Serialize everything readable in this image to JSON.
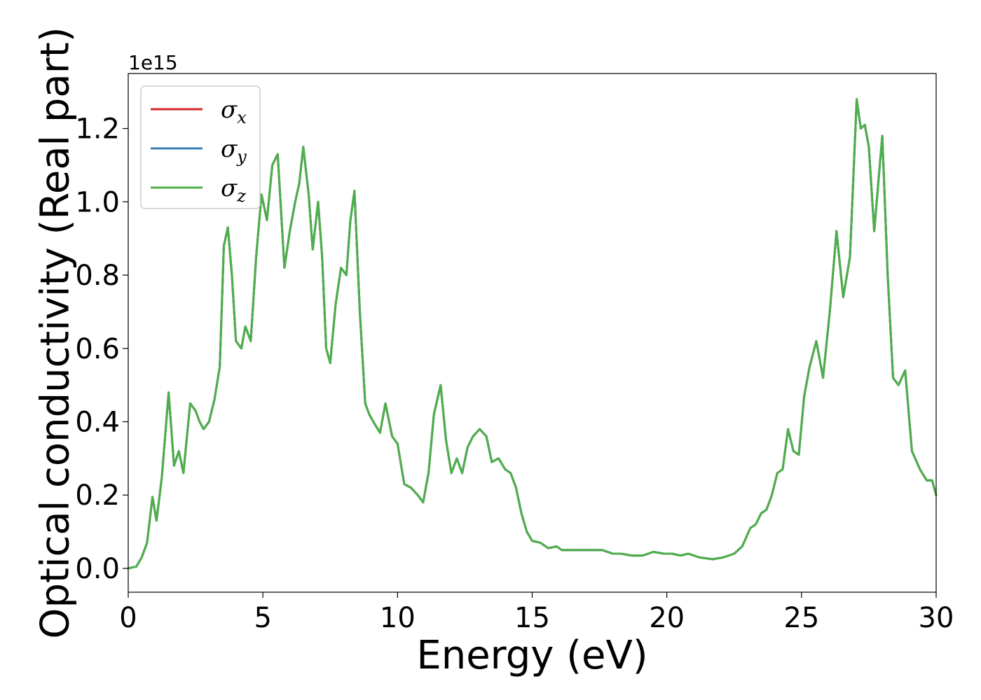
{
  "chart_data": {
    "type": "line",
    "xlabel": "Energy (eV)",
    "ylabel": "Optical conductivity (Real part)",
    "y_offset_label": "1e15",
    "xlim": [
      0,
      30
    ],
    "ylim": [
      -0.065,
      1.35
    ],
    "xticks": [
      0,
      5,
      10,
      15,
      20,
      25,
      30
    ],
    "xtick_labels": [
      "0",
      "5",
      "10",
      "15",
      "20",
      "25",
      "30"
    ],
    "yticks": [
      0.0,
      0.2,
      0.4,
      0.6,
      0.8,
      1.0,
      1.2
    ],
    "ytick_labels": [
      "0.0",
      "0.2",
      "0.4",
      "0.6",
      "0.8",
      "1.0",
      "1.2"
    ],
    "grid": false,
    "legend_position": "top-left",
    "x": [
      0.0,
      0.3,
      0.5,
      0.7,
      0.9,
      1.05,
      1.25,
      1.5,
      1.7,
      1.88,
      2.05,
      2.3,
      2.5,
      2.65,
      2.8,
      3.0,
      3.2,
      3.4,
      3.55,
      3.7,
      3.85,
      4.0,
      4.2,
      4.35,
      4.55,
      4.75,
      4.95,
      5.15,
      5.35,
      5.55,
      5.8,
      6.0,
      6.2,
      6.35,
      6.5,
      6.7,
      6.85,
      7.05,
      7.2,
      7.35,
      7.5,
      7.7,
      7.9,
      8.1,
      8.25,
      8.4,
      8.6,
      8.8,
      8.95,
      9.1,
      9.35,
      9.55,
      9.8,
      10.0,
      10.25,
      10.5,
      10.75,
      10.95,
      11.15,
      11.35,
      11.6,
      11.8,
      12.0,
      12.2,
      12.4,
      12.6,
      12.8,
      13.05,
      13.3,
      13.5,
      13.75,
      14.0,
      14.2,
      14.4,
      14.6,
      14.8,
      15.0,
      15.3,
      15.6,
      15.9,
      16.1,
      16.4,
      16.8,
      17.2,
      17.6,
      18.0,
      18.3,
      18.7,
      19.1,
      19.5,
      19.9,
      20.2,
      20.5,
      20.8,
      21.2,
      21.7,
      22.1,
      22.5,
      22.8,
      23.1,
      23.3,
      23.5,
      23.7,
      23.9,
      24.1,
      24.3,
      24.5,
      24.7,
      24.9,
      25.1,
      25.3,
      25.55,
      25.8,
      26.05,
      26.3,
      26.55,
      26.8,
      27.05,
      27.2,
      27.35,
      27.5,
      27.7,
      27.85,
      28.0,
      28.2,
      28.4,
      28.6,
      28.85,
      29.1,
      29.4,
      29.65,
      29.85,
      30.0
    ],
    "series": [
      {
        "name": "σx",
        "color": "#d62728",
        "values": [
          0.0,
          0.005,
          0.03,
          0.07,
          0.195,
          0.13,
          0.25,
          0.48,
          0.28,
          0.32,
          0.26,
          0.45,
          0.43,
          0.4,
          0.38,
          0.4,
          0.46,
          0.55,
          0.88,
          0.93,
          0.8,
          0.62,
          0.6,
          0.66,
          0.62,
          0.85,
          1.02,
          0.95,
          1.1,
          1.13,
          0.82,
          0.92,
          1.0,
          1.05,
          1.15,
          1.02,
          0.87,
          1.0,
          0.85,
          0.6,
          0.56,
          0.72,
          0.82,
          0.8,
          0.95,
          1.03,
          0.7,
          0.45,
          0.42,
          0.4,
          0.37,
          0.45,
          0.36,
          0.34,
          0.23,
          0.22,
          0.2,
          0.18,
          0.26,
          0.42,
          0.5,
          0.35,
          0.26,
          0.3,
          0.26,
          0.33,
          0.36,
          0.38,
          0.36,
          0.29,
          0.3,
          0.27,
          0.26,
          0.22,
          0.15,
          0.1,
          0.075,
          0.07,
          0.055,
          0.06,
          0.05,
          0.05,
          0.05,
          0.05,
          0.05,
          0.04,
          0.04,
          0.035,
          0.035,
          0.045,
          0.04,
          0.04,
          0.035,
          0.04,
          0.03,
          0.025,
          0.03,
          0.04,
          0.06,
          0.11,
          0.12,
          0.15,
          0.16,
          0.2,
          0.26,
          0.27,
          0.38,
          0.32,
          0.31,
          0.47,
          0.55,
          0.62,
          0.52,
          0.7,
          0.92,
          0.74,
          0.85,
          1.28,
          1.2,
          1.21,
          1.15,
          0.92,
          1.05,
          1.18,
          0.8,
          0.52,
          0.5,
          0.54,
          0.32,
          0.27,
          0.24,
          0.24,
          0.2
        ]
      },
      {
        "name": "σy",
        "color": "#377eb8",
        "values": [
          0.0,
          0.005,
          0.03,
          0.07,
          0.195,
          0.13,
          0.25,
          0.48,
          0.28,
          0.32,
          0.26,
          0.45,
          0.43,
          0.4,
          0.38,
          0.4,
          0.46,
          0.55,
          0.88,
          0.93,
          0.8,
          0.62,
          0.6,
          0.66,
          0.62,
          0.85,
          1.02,
          0.95,
          1.1,
          1.13,
          0.82,
          0.92,
          1.0,
          1.05,
          1.15,
          1.02,
          0.87,
          1.0,
          0.85,
          0.6,
          0.56,
          0.72,
          0.82,
          0.8,
          0.95,
          1.03,
          0.7,
          0.45,
          0.42,
          0.4,
          0.37,
          0.45,
          0.36,
          0.34,
          0.23,
          0.22,
          0.2,
          0.18,
          0.26,
          0.42,
          0.5,
          0.35,
          0.26,
          0.3,
          0.26,
          0.33,
          0.36,
          0.38,
          0.36,
          0.29,
          0.3,
          0.27,
          0.26,
          0.22,
          0.15,
          0.1,
          0.075,
          0.07,
          0.055,
          0.06,
          0.05,
          0.05,
          0.05,
          0.05,
          0.05,
          0.04,
          0.04,
          0.035,
          0.035,
          0.045,
          0.04,
          0.04,
          0.035,
          0.04,
          0.03,
          0.025,
          0.03,
          0.04,
          0.06,
          0.11,
          0.12,
          0.15,
          0.16,
          0.2,
          0.26,
          0.27,
          0.38,
          0.32,
          0.31,
          0.47,
          0.55,
          0.62,
          0.52,
          0.7,
          0.92,
          0.74,
          0.85,
          1.28,
          1.2,
          1.21,
          1.15,
          0.92,
          1.05,
          1.18,
          0.8,
          0.52,
          0.5,
          0.54,
          0.32,
          0.27,
          0.24,
          0.24,
          0.2
        ]
      },
      {
        "name": "σz",
        "color": "#4daf4a",
        "values": [
          0.0,
          0.005,
          0.03,
          0.07,
          0.195,
          0.13,
          0.25,
          0.48,
          0.28,
          0.32,
          0.26,
          0.45,
          0.43,
          0.4,
          0.38,
          0.4,
          0.46,
          0.55,
          0.88,
          0.93,
          0.8,
          0.62,
          0.6,
          0.66,
          0.62,
          0.85,
          1.02,
          0.95,
          1.1,
          1.13,
          0.82,
          0.92,
          1.0,
          1.05,
          1.15,
          1.02,
          0.87,
          1.0,
          0.85,
          0.6,
          0.56,
          0.72,
          0.82,
          0.8,
          0.95,
          1.03,
          0.7,
          0.45,
          0.42,
          0.4,
          0.37,
          0.45,
          0.36,
          0.34,
          0.23,
          0.22,
          0.2,
          0.18,
          0.26,
          0.42,
          0.5,
          0.35,
          0.26,
          0.3,
          0.26,
          0.33,
          0.36,
          0.38,
          0.36,
          0.29,
          0.3,
          0.27,
          0.26,
          0.22,
          0.15,
          0.1,
          0.075,
          0.07,
          0.055,
          0.06,
          0.05,
          0.05,
          0.05,
          0.05,
          0.05,
          0.04,
          0.04,
          0.035,
          0.035,
          0.045,
          0.04,
          0.04,
          0.035,
          0.04,
          0.03,
          0.025,
          0.03,
          0.04,
          0.06,
          0.11,
          0.12,
          0.15,
          0.16,
          0.2,
          0.26,
          0.27,
          0.38,
          0.32,
          0.31,
          0.47,
          0.55,
          0.62,
          0.52,
          0.7,
          0.92,
          0.74,
          0.85,
          1.28,
          1.2,
          1.21,
          1.15,
          0.92,
          1.05,
          1.18,
          0.8,
          0.52,
          0.5,
          0.54,
          0.32,
          0.27,
          0.24,
          0.24,
          0.2
        ]
      }
    ],
    "legend": [
      {
        "symbol": "σ",
        "sub": "x",
        "color": "#d62728"
      },
      {
        "symbol": "σ",
        "sub": "y",
        "color": "#377eb8"
      },
      {
        "symbol": "σ",
        "sub": "z",
        "color": "#4daf4a"
      }
    ]
  }
}
